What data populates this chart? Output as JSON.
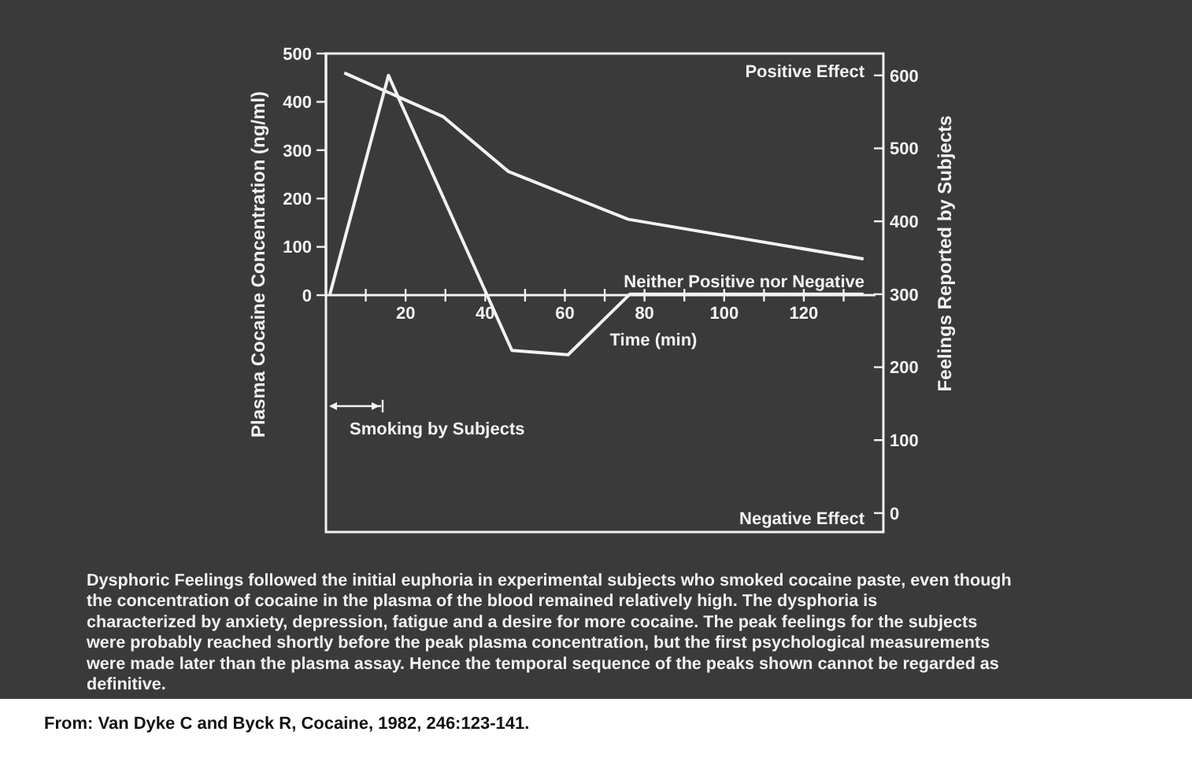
{
  "chart_data": {
    "type": "line",
    "xlabel": "Time (min)",
    "ylabel": "Plasma Cocaine Concentration (ng/ml)",
    "y2label": "Feelings Reported by Subjects",
    "xlim": [
      0,
      138
    ],
    "xticks": [
      {
        "value": 10,
        "label": null
      },
      20,
      {
        "value": 30,
        "label": null
      },
      40,
      {
        "value": 50,
        "label": null
      },
      60,
      {
        "value": 70,
        "label": null
      },
      80,
      {
        "value": 90,
        "label": null
      },
      100,
      {
        "value": 110,
        "label": null
      },
      120,
      {
        "value": 130,
        "label": null
      }
    ],
    "ylim": [
      -490,
      500
    ],
    "yticks": [
      0,
      100,
      200,
      300,
      400,
      500
    ],
    "y2lim": [
      -26,
      630
    ],
    "y2ticks": [
      0,
      100,
      200,
      300,
      400,
      500,
      600
    ],
    "series": [
      {
        "color": "#f2f2f2",
        "x": [
          4.6,
          29.5,
          45.8,
          75.9,
          135
        ],
        "values": [
          460,
          369,
          256,
          157,
          75
        ]
      },
      {
        "color": "#f2f2f2",
        "axis": "y2",
        "x": [
          1,
          15.7,
          46.7,
          60.8,
          76.3,
          135
        ],
        "values": [
          300,
          600,
          223,
          217,
          300,
          300
        ]
      }
    ],
    "annotations": [
      "Positive Effect",
      "Neither Positive nor Negative",
      "Negative Effect",
      "Smoking by Subjects",
      "Dysphoric Feelings followed the initial euphoria in experimental subjects who smoked cocaine paste, even though the concentration of cocaine in the plasma of the blood remained relatively high. The dysphoria is characterized by anxiety, depression, fatigue and a desire for more cocaine. The peak feelings for the subjects were probably reached shortly before the peak plasma concentration, but the first psychological measurements were made later than the plasma assay. Hence the temporal sequence of the peaks shown cannot be regarded as definitive.",
      "From: Van Dyke C and Byck R, Cocaine, 1982, 246:123-141."
    ],
    "line_style": "solid",
    "marker": "none",
    "grid": false
  }
}
